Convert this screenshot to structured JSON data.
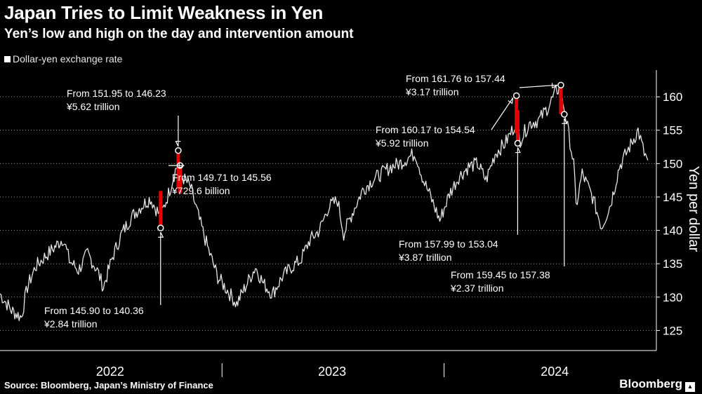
{
  "header": {
    "title": "Japan Tries to Limit Weakness in Yen",
    "subtitle": "Yen’s low and high on the day and intervention amount"
  },
  "legend": {
    "label": "Dollar-yen exchange rate"
  },
  "footer": {
    "source": "Source: Bloomberg, Japan’s Ministry of Finance",
    "brand": "Bloomberg"
  },
  "colors": {
    "background": "#000000",
    "series": "#e6e6e6",
    "intervention": "#e60000",
    "grid": "#ffffff"
  },
  "chart_data": {
    "type": "line",
    "title": "Japan Tries to Limit Weakness in Yen",
    "ylabel": "Yen per dollar",
    "ylim": [
      122,
      164
    ],
    "yticks": [
      125,
      130,
      135,
      140,
      145,
      150,
      155,
      160
    ],
    "x_axis": {
      "start": "2022-01",
      "end": "2024-12",
      "labels": [
        "2022",
        "2023",
        "2024"
      ]
    },
    "grid": "horizontal dotted",
    "series": [
      {
        "name": "Dollar-yen exchange rate",
        "points": [
          [
            "2022-01-01",
            130.5
          ],
          [
            "2022-01-20",
            128.0
          ],
          [
            "2022-02-05",
            127.0
          ],
          [
            "2022-02-15",
            131.5
          ],
          [
            "2022-02-28",
            134.5
          ],
          [
            "2022-03-15",
            136.0
          ],
          [
            "2022-04-01",
            137.5
          ],
          [
            "2022-04-15",
            138.8
          ],
          [
            "2022-04-25",
            135.5
          ],
          [
            "2022-05-10",
            134.0
          ],
          [
            "2022-05-25",
            136.5
          ],
          [
            "2022-06-10",
            134.0
          ],
          [
            "2022-06-20",
            131.5
          ],
          [
            "2022-07-05",
            136.0
          ],
          [
            "2022-07-20",
            139.5
          ],
          [
            "2022-08-05",
            142.0
          ],
          [
            "2022-08-20",
            143.5
          ],
          [
            "2022-09-05",
            144.8
          ],
          [
            "2022-09-22",
            142.0
          ],
          [
            "2022-10-05",
            145.5
          ],
          [
            "2022-10-18",
            149.5
          ],
          [
            "2022-10-28",
            148.0
          ],
          [
            "2022-11-10",
            146.5
          ],
          [
            "2022-11-25",
            141.5
          ],
          [
            "2022-12-10",
            137.0
          ],
          [
            "2022-12-25",
            133.0
          ],
          [
            "2023-01-10",
            131.0
          ],
          [
            "2023-01-25",
            129.0
          ],
          [
            "2023-02-08",
            131.5
          ],
          [
            "2023-02-25",
            134.5
          ],
          [
            "2023-03-10",
            132.0
          ],
          [
            "2023-03-25",
            130.5
          ],
          [
            "2023-04-10",
            133.0
          ],
          [
            "2023-04-25",
            134.5
          ],
          [
            "2023-05-10",
            135.5
          ],
          [
            "2023-05-25",
            138.5
          ],
          [
            "2023-06-10",
            140.0
          ],
          [
            "2023-06-25",
            143.5
          ],
          [
            "2023-07-10",
            144.5
          ],
          [
            "2023-07-20",
            139.5
          ],
          [
            "2023-08-05",
            143.0
          ],
          [
            "2023-08-20",
            146.0
          ],
          [
            "2023-09-05",
            147.5
          ],
          [
            "2023-09-20",
            148.5
          ],
          [
            "2023-10-05",
            149.5
          ],
          [
            "2023-10-20",
            150.0
          ],
          [
            "2023-11-05",
            151.0
          ],
          [
            "2023-11-15",
            151.5
          ],
          [
            "2023-11-28",
            147.5
          ],
          [
            "2023-12-10",
            145.0
          ],
          [
            "2023-12-25",
            141.5
          ],
          [
            "2024-01-10",
            145.5
          ],
          [
            "2024-01-25",
            148.0
          ],
          [
            "2024-02-10",
            149.5
          ],
          [
            "2024-02-25",
            150.0
          ],
          [
            "2024-03-10",
            147.5
          ],
          [
            "2024-03-25",
            151.5
          ],
          [
            "2024-04-10",
            153.0
          ],
          [
            "2024-04-25",
            155.5
          ],
          [
            "2024-04-29",
            157.0
          ],
          [
            "2024-05-05",
            153.5
          ],
          [
            "2024-05-20",
            156.0
          ],
          [
            "2024-06-05",
            156.5
          ],
          [
            "2024-06-20",
            158.5
          ],
          [
            "2024-07-05",
            161.0
          ],
          [
            "2024-07-10",
            161.5
          ],
          [
            "2024-07-20",
            156.5
          ],
          [
            "2024-08-01",
            150.0
          ],
          [
            "2024-08-05",
            143.5
          ],
          [
            "2024-08-15",
            148.5
          ],
          [
            "2024-09-01",
            145.0
          ],
          [
            "2024-09-16",
            140.5
          ],
          [
            "2024-10-01",
            144.0
          ],
          [
            "2024-10-15",
            149.5
          ],
          [
            "2024-11-01",
            152.5
          ],
          [
            "2024-11-15",
            155.0
          ],
          [
            "2024-11-25",
            151.5
          ],
          [
            "2024-12-01",
            150.5
          ]
        ]
      }
    ],
    "interventions": [
      {
        "date": "2022-09-22",
        "high": 145.9,
        "low": 140.36,
        "label": "From 145.90 to 140.36",
        "amount": "¥2.84 trillion"
      },
      {
        "date": "2022-10-21",
        "high": 151.95,
        "low": 146.23,
        "label": "From 151.95 to 146.23",
        "amount": "¥5.62 trillion"
      },
      {
        "date": "2022-10-24",
        "high": 149.71,
        "low": 145.56,
        "label": "From 149.71 to 145.56",
        "amount": "¥729.6 billion"
      },
      {
        "date": "2024-04-29",
        "high": 160.17,
        "low": 154.54,
        "label": "From 160.17 to 154.54",
        "amount": "¥5.92 trillion"
      },
      {
        "date": "2024-05-01",
        "high": 157.99,
        "low": 153.04,
        "label": "From 157.99 to 153.04",
        "amount": "¥3.87 trillion"
      },
      {
        "date": "2024-07-11",
        "high": 161.76,
        "low": 157.44,
        "label": "From 161.76 to 157.44",
        "amount": "¥3.17 trillion"
      },
      {
        "date": "2024-07-12",
        "high": 159.45,
        "low": 157.38,
        "label": "From 159.45 to 157.38",
        "amount": "¥2.37 trillion"
      }
    ]
  }
}
